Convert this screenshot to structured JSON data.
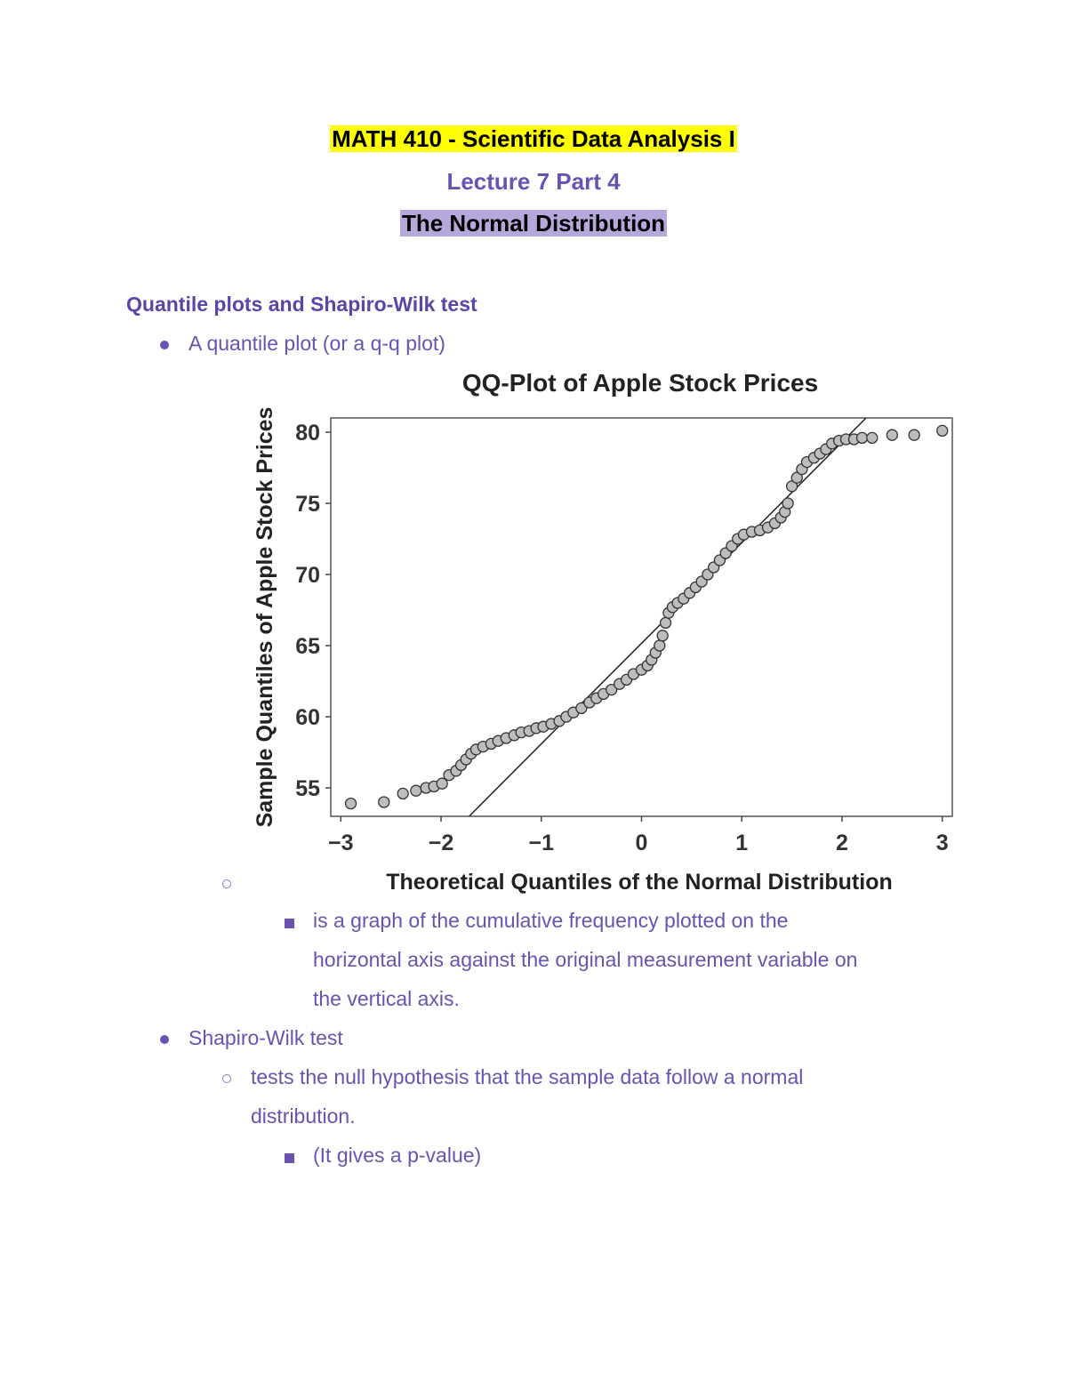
{
  "header": {
    "course": "MATH 410 -  Scientific Data Analysis I",
    "lecture": "Lecture 7 Part 4",
    "topic": "The Normal Distribution"
  },
  "section_title": "Quantile plots and Shapiro-Wilk test",
  "bullets": {
    "qq_plot": "A quantile plot (or a q-q plot)",
    "qq_def_line1": " is a graph of the cumulative frequency plotted on the",
    "qq_def_line2": "horizontal axis against the original measurement variable on",
    "qq_def_line3": "the vertical axis.",
    "sw_test": "Shapiro-Wilk test",
    "sw_def_line1": " tests the null hypothesis that the sample data follow a normal",
    "sw_def_line2": "distribution.",
    "sw_pvalue": "(It gives a p-value)"
  },
  "chart_data": {
    "type": "scatter",
    "title": "QQ-Plot of Apple Stock Prices",
    "xlabel": "Theoretical Quantiles of the Normal Distribution",
    "ylabel": "Sample Quantiles of Apple Stock Prices",
    "xlim": [
      -3.1,
      3.1
    ],
    "ylim": [
      53,
      81
    ],
    "x_ticks": [
      -3,
      -2,
      -1,
      0,
      1,
      2,
      3
    ],
    "x_tick_labels": [
      "−3",
      "−2",
      "−1",
      "0",
      "1",
      "2",
      "3"
    ],
    "y_ticks": [
      55,
      60,
      65,
      70,
      75,
      80
    ],
    "y_tick_labels": [
      "55",
      "60",
      "65",
      "70",
      "75",
      "80"
    ],
    "reference_line": {
      "x": [
        -1.72,
        2.24
      ],
      "y": [
        53,
        81
      ]
    },
    "points": [
      [
        -2.9,
        53.9
      ],
      [
        -2.57,
        54.0
      ],
      [
        -2.38,
        54.6
      ],
      [
        -2.25,
        54.8
      ],
      [
        -2.15,
        55.0
      ],
      [
        -2.07,
        55.1
      ],
      [
        -1.99,
        55.3
      ],
      [
        -1.92,
        55.9
      ],
      [
        -1.85,
        56.2
      ],
      [
        -1.8,
        56.6
      ],
      [
        -1.75,
        57.0
      ],
      [
        -1.7,
        57.4
      ],
      [
        -1.65,
        57.7
      ],
      [
        -1.58,
        57.9
      ],
      [
        -1.5,
        58.1
      ],
      [
        -1.43,
        58.3
      ],
      [
        -1.35,
        58.5
      ],
      [
        -1.27,
        58.7
      ],
      [
        -1.2,
        58.9
      ],
      [
        -1.12,
        59.0
      ],
      [
        -1.05,
        59.2
      ],
      [
        -0.98,
        59.3
      ],
      [
        -0.9,
        59.5
      ],
      [
        -0.82,
        59.7
      ],
      [
        -0.75,
        60.0
      ],
      [
        -0.68,
        60.3
      ],
      [
        -0.6,
        60.6
      ],
      [
        -0.52,
        61.0
      ],
      [
        -0.45,
        61.3
      ],
      [
        -0.38,
        61.6
      ],
      [
        -0.3,
        61.9
      ],
      [
        -0.22,
        62.3
      ],
      [
        -0.15,
        62.6
      ],
      [
        -0.08,
        63.0
      ],
      [
        0.0,
        63.3
      ],
      [
        0.06,
        63.6
      ],
      [
        0.1,
        64.0
      ],
      [
        0.14,
        64.5
      ],
      [
        0.18,
        65.0
      ],
      [
        0.21,
        65.7
      ],
      [
        0.24,
        66.6
      ],
      [
        0.27,
        67.3
      ],
      [
        0.31,
        67.7
      ],
      [
        0.36,
        68.0
      ],
      [
        0.42,
        68.3
      ],
      [
        0.48,
        68.7
      ],
      [
        0.54,
        69.1
      ],
      [
        0.6,
        69.5
      ],
      [
        0.66,
        70.0
      ],
      [
        0.72,
        70.5
      ],
      [
        0.78,
        71.0
      ],
      [
        0.84,
        71.5
      ],
      [
        0.9,
        72.0
      ],
      [
        0.96,
        72.5
      ],
      [
        1.02,
        72.8
      ],
      [
        1.1,
        73.0
      ],
      [
        1.18,
        73.1
      ],
      [
        1.26,
        73.3
      ],
      [
        1.33,
        73.6
      ],
      [
        1.39,
        74.0
      ],
      [
        1.43,
        74.4
      ],
      [
        1.46,
        75.0
      ],
      [
        1.5,
        76.2
      ],
      [
        1.55,
        76.8
      ],
      [
        1.6,
        77.4
      ],
      [
        1.65,
        77.9
      ],
      [
        1.72,
        78.2
      ],
      [
        1.78,
        78.5
      ],
      [
        1.84,
        78.8
      ],
      [
        1.9,
        79.2
      ],
      [
        1.97,
        79.4
      ],
      [
        2.04,
        79.5
      ],
      [
        2.12,
        79.5
      ],
      [
        2.2,
        79.6
      ],
      [
        2.3,
        79.6
      ],
      [
        2.5,
        79.8
      ],
      [
        2.72,
        79.8
      ],
      [
        3.0,
        80.1
      ]
    ]
  }
}
